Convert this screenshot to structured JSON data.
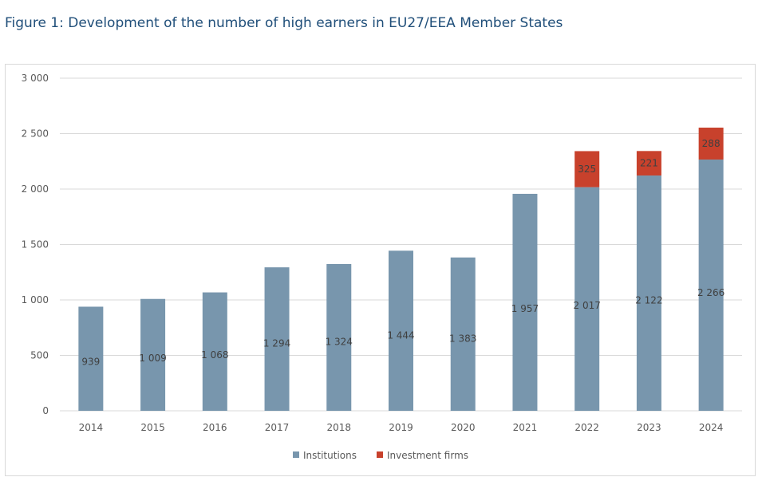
{
  "figure_title": "Figure 1: Development of the number of high earners in EU27/EEA Member States",
  "colors": {
    "institutions": "#7896ad",
    "investment_firms": "#c8412c",
    "grid": "#d9d9d9",
    "text": "#595959"
  },
  "chart_data": {
    "type": "bar",
    "stacked": true,
    "categories": [
      "2014",
      "2015",
      "2016",
      "2017",
      "2018",
      "2019",
      "2020",
      "2021",
      "2022",
      "2023",
      "2024"
    ],
    "series": [
      {
        "name": "Institutions",
        "values": [
          939,
          1009,
          1068,
          1294,
          1324,
          1444,
          1383,
          1957,
          2017,
          2122,
          2266
        ],
        "labels": [
          "939",
          "1 009",
          "1 068",
          "1 294",
          "1 324",
          "1 444",
          "1 383",
          "1 957",
          "2 017",
          "2 122",
          "2 266"
        ]
      },
      {
        "name": "Investment firms",
        "values": [
          null,
          null,
          null,
          null,
          null,
          null,
          null,
          null,
          325,
          221,
          288
        ],
        "labels": [
          "",
          "",
          "",
          "",
          "",
          "",
          "",
          "",
          "325",
          "221",
          "288"
        ]
      }
    ],
    "ylim": [
      0,
      3000
    ],
    "yticks": [
      0,
      500,
      1000,
      1500,
      2000,
      2500,
      3000
    ],
    "ytick_labels": [
      "0",
      "500",
      "1 000",
      "1 500",
      "2 000",
      "2 500",
      "3 000"
    ],
    "grid": true,
    "legend": "bottom"
  }
}
